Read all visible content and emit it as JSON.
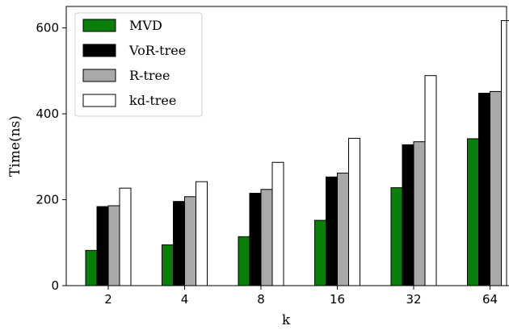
{
  "chart_data": {
    "type": "bar",
    "categories": [
      "2",
      "4",
      "8",
      "16",
      "32",
      "64"
    ],
    "xlabel": "k",
    "ylabel": "Time(ns)",
    "ylim": [
      0,
      650
    ],
    "yticks": [
      0,
      200,
      400,
      600
    ],
    "grid": false,
    "legend_position": "top-left",
    "series": [
      {
        "name": "MVD",
        "color": "#0a7d0a",
        "values": [
          82,
          95,
          114,
          152,
          228,
          342
        ]
      },
      {
        "name": "VoR-tree",
        "color": "#000000",
        "values": [
          184,
          196,
          215,
          253,
          328,
          448
        ]
      },
      {
        "name": "R-tree",
        "color": "#a9a9a9",
        "values": [
          186,
          207,
          224,
          262,
          335,
          452
        ]
      },
      {
        "name": "kd-tree",
        "color": "#ffffff",
        "values": [
          227,
          242,
          287,
          343,
          489,
          617
        ]
      }
    ]
  }
}
